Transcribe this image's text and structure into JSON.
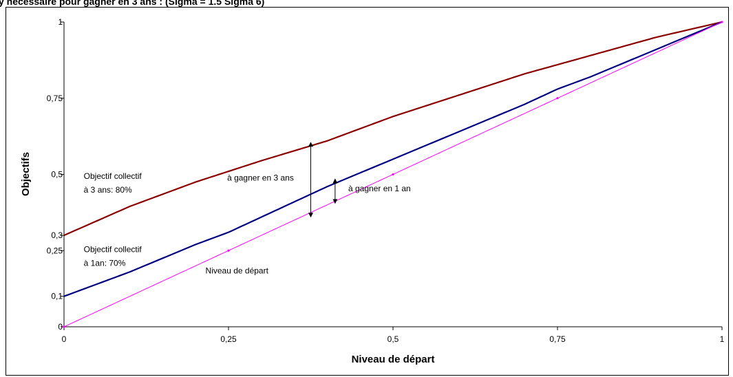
{
  "header_text": "y nécessaire pour gagner en 3 ans : (Sigma = 1.5 Sigma 6)",
  "chart_data": {
    "type": "line",
    "xlabel": "Niveau de départ",
    "ylabel": "Objectifs",
    "xlim": [
      0,
      1
    ],
    "ylim": [
      0,
      1
    ],
    "x_ticks": [
      {
        "value": 0,
        "label": "0"
      },
      {
        "value": 0.25,
        "label": "0,25"
      },
      {
        "value": 0.5,
        "label": "0,5"
      },
      {
        "value": 0.75,
        "label": "0,75"
      },
      {
        "value": 1,
        "label": "1"
      }
    ],
    "y_ticks": [
      {
        "value": 0,
        "label": "0"
      },
      {
        "value": 0.1,
        "label": "0,1"
      },
      {
        "value": 0.25,
        "label": "0,25"
      },
      {
        "value": 0.3,
        "label": "0,3"
      },
      {
        "value": 0.5,
        "label": "0,5"
      },
      {
        "value": 0.75,
        "label": "0,75"
      },
      {
        "value": 1,
        "label": "1"
      }
    ],
    "grid": false,
    "series": [
      {
        "color": "#8b0000",
        "x": [
          0,
          0.1,
          0.2,
          0.25,
          0.3,
          0.4,
          0.5,
          0.6,
          0.7,
          0.75,
          0.8,
          0.9,
          1
        ],
        "y": [
          0.3,
          0.395,
          0.475,
          0.51,
          0.545,
          0.61,
          0.69,
          0.76,
          0.83,
          0.86,
          0.89,
          0.95,
          1
        ]
      },
      {
        "color": "#000080",
        "x": [
          0,
          0.1,
          0.2,
          0.25,
          0.3,
          0.4,
          0.5,
          0.6,
          0.7,
          0.75,
          0.8,
          0.9,
          1
        ],
        "y": [
          0.1,
          0.18,
          0.27,
          0.31,
          0.36,
          0.46,
          0.55,
          0.64,
          0.73,
          0.78,
          0.82,
          0.91,
          1
        ]
      },
      {
        "color": "#ff00ff",
        "x": [
          0,
          0.25,
          0.5,
          0.75,
          1
        ],
        "y": [
          0,
          0.25,
          0.5,
          0.75,
          1
        ]
      }
    ],
    "annotations": [
      {
        "text": "Objectif collectif",
        "x": 0.03,
        "y": 0.485
      },
      {
        "text": "à 3 ans: 80%",
        "x": 0.03,
        "y": 0.44
      },
      {
        "text": "Objectif collectif",
        "x": 0.03,
        "y": 0.245
      },
      {
        "text": "à 1an: 70%",
        "x": 0.03,
        "y": 0.2
      },
      {
        "text": "Niveau de départ",
        "x": 0.215,
        "y": 0.175
      },
      {
        "text": "à gagner en 3 ans",
        "x": 0.248,
        "y": 0.48
      },
      {
        "text": "à gagner en 1 an",
        "x": 0.432,
        "y": 0.445
      }
    ],
    "arrows": [
      {
        "x": 0.375,
        "y1": 0.605,
        "y2": 0.36
      },
      {
        "x": 0.412,
        "y1": 0.485,
        "y2": 0.405
      }
    ]
  }
}
